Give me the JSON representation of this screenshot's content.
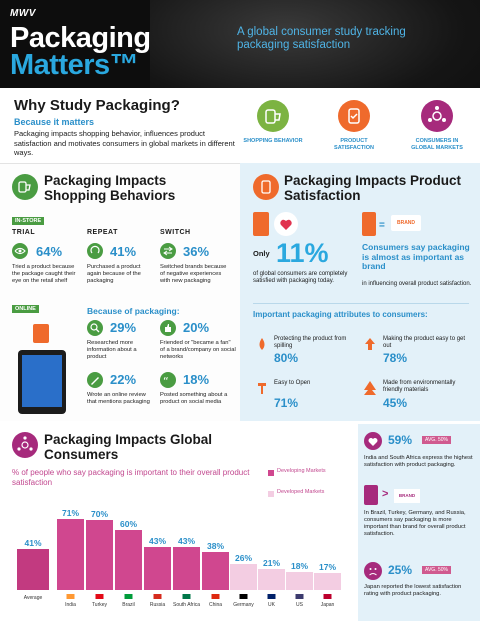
{
  "header": {
    "logo": "MWV",
    "title_line1": "Packaging",
    "title_line2": "Matters™",
    "tagline": "A global consumer study tracking packaging satisfaction"
  },
  "why": {
    "title": "Why Study Packaging?",
    "subtitle": "Because it matters",
    "text": "Packaging impacts shopping behavior, influences product satisfaction and motivates consumers in global markets in different ways.",
    "icons": [
      {
        "label": "SHOPPING BEHAVIOR",
        "color": "#7cb342",
        "icon": "cart-icon"
      },
      {
        "label": "PRODUCT SATISFACTION",
        "color": "#ef6a2c",
        "icon": "cup-icon"
      },
      {
        "label": "CONSUMERS IN GLOBAL MARKETS",
        "color": "#a62a7c",
        "icon": "network-icon"
      }
    ]
  },
  "shopping": {
    "title": "Packaging Impacts Shopping Behaviors",
    "tag_instore": "IN-STORE",
    "tag_online": "ONLINE",
    "columns": [
      {
        "heading": "TRIAL",
        "pct": "64%",
        "desc": "Tried a product because the package caught their eye on the retail shelf"
      },
      {
        "heading": "REPEAT",
        "pct": "41%",
        "desc": "Purchased a product again because of the packaging"
      },
      {
        "heading": "SWITCH",
        "pct": "36%",
        "desc": "Switched brands because of negative experiences with new packaging"
      }
    ],
    "because_label": "Because of packaging:",
    "online_stats": [
      {
        "pct": "29%",
        "desc": "Researched more information about a product"
      },
      {
        "pct": "20%",
        "desc": "Friended or \"became a fan\" of a brand/company on social networks"
      },
      {
        "pct": "22%",
        "desc": "Wrote an online review that mentions packaging"
      },
      {
        "pct": "18%",
        "desc": "Posted something about a product on social media"
      }
    ]
  },
  "satisfaction": {
    "title": "Packaging Impacts Product Satisfaction",
    "only": "Only",
    "big_pct": "11%",
    "big_desc": "of global consumers are completely satisfied with packaging today.",
    "brand_label": "BRAND",
    "brand_title": "Consumers say packaging is almost as important as brand",
    "brand_desc": "in influencing overall product satisfaction.",
    "attr_title": "Important packaging attributes to consumers:",
    "attributes": [
      {
        "desc": "Protecting the product from spilling",
        "pct": "80%"
      },
      {
        "desc": "Making the product easy to get out",
        "pct": "78%"
      },
      {
        "desc": "Easy to Open",
        "pct": "71%"
      },
      {
        "desc": "Made from environmentally friendly materials",
        "pct": "45%"
      }
    ]
  },
  "global": {
    "title": "Packaging Impacts Global Consumers",
    "subtitle": "% of people who say packaging is important to their overall product satisfaction",
    "legend": [
      {
        "label": "Developing Markets",
        "color": "#d0478f"
      },
      {
        "label": "Developed Markets",
        "color": "#f3cde2"
      }
    ],
    "side": [
      {
        "pct": "59%",
        "avg": "AVG. 50%",
        "desc": "India and South Africa express the highest satisfaction with product packaging."
      },
      {
        "brand": "BRAND",
        "desc": "In Brazil, Turkey, Germany, and Russia, consumers say packaging is more important than brand for overall product satisfaction."
      },
      {
        "pct": "25%",
        "avg": "AVG. 50%",
        "desc": "Japan reported the lowest satisfaction rating with product packaging."
      }
    ]
  },
  "chart_data": {
    "type": "bar",
    "categories": [
      "Average",
      "India",
      "Turkey",
      "Brazil",
      "Russia",
      "South Africa",
      "China",
      "Germany",
      "UK",
      "US",
      "Japan"
    ],
    "values": [
      41,
      71,
      70,
      60,
      43,
      43,
      38,
      26,
      21,
      18,
      17
    ],
    "labels": [
      "41%",
      "71%",
      "70%",
      "60%",
      "43%",
      "43%",
      "38%",
      "26%",
      "21%",
      "18%",
      "17%"
    ],
    "groups": [
      "average",
      "developing",
      "developing",
      "developing",
      "developing",
      "developing",
      "developing",
      "developed",
      "developed",
      "developed",
      "developed"
    ],
    "colors": {
      "average": "#c23a80",
      "developing": "#d0478f",
      "developed": "#f3cde2"
    },
    "title": "",
    "xlabel": "",
    "ylabel": "",
    "ylim": [
      0,
      80
    ]
  }
}
